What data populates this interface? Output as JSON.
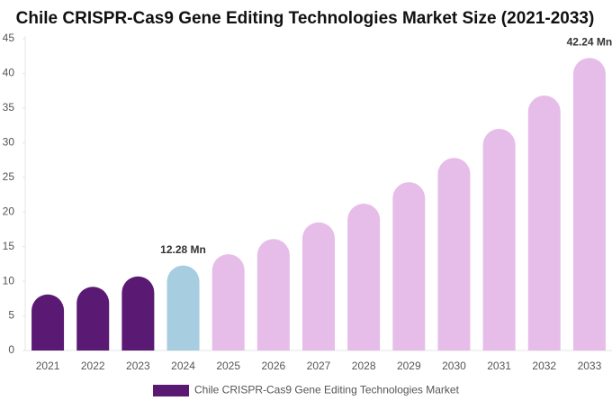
{
  "chart_data": {
    "type": "bar",
    "title": "Chile CRISPR-Cas9 Gene Editing Technologies Market Size (2021-2033)",
    "categories": [
      "2021",
      "2022",
      "2023",
      "2024",
      "2025",
      "2026",
      "2027",
      "2028",
      "2029",
      "2030",
      "2031",
      "2032",
      "2033"
    ],
    "series": [
      {
        "name": "Chile CRISPR-Cas9 Gene Editing Technologies Market",
        "color": "#5a1a74",
        "colors": [
          "#5a1a74",
          "#5a1a74",
          "#5a1a74",
          "#a6cde0",
          "#e6bde9",
          "#e6bde9",
          "#e6bde9",
          "#e6bde9",
          "#e6bde9",
          "#e6bde9",
          "#e6bde9",
          "#e6bde9",
          "#e6bde9"
        ],
        "values": [
          8.1,
          9.2,
          10.7,
          12.28,
          13.9,
          16.1,
          18.5,
          21.2,
          24.3,
          27.8,
          32.0,
          36.8,
          42.24
        ],
        "value_labels": [
          null,
          null,
          null,
          "12.28 Mn",
          null,
          null,
          null,
          null,
          null,
          null,
          null,
          null,
          "42.24 Mn"
        ]
      }
    ],
    "ylim": [
      0,
      45
    ],
    "yticks": [
      0,
      5,
      10,
      15,
      20,
      25,
      30,
      35,
      40,
      45
    ]
  }
}
